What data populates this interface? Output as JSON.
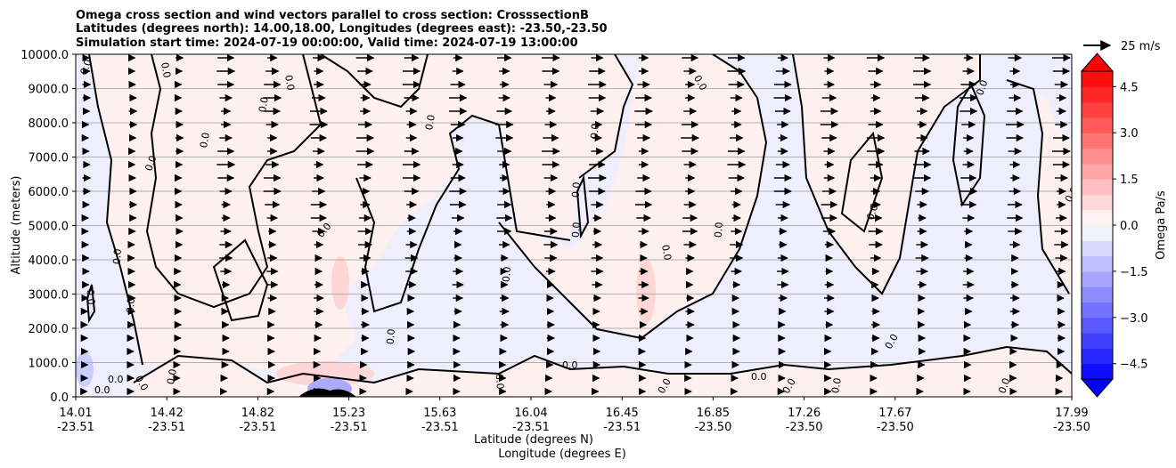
{
  "chart_data": {
    "type": "contour",
    "title_lines": [
      "Omega cross section and wind vectors parallel to cross section: CrosssectionB",
      "Latitudes (degrees north): 14.00,18.00, Longitudes (degrees east): -23.50,-23.50",
      "Simulation start time: 2024-07-19 00:00:00, Valid time: 2024-07-19 13:00:00"
    ],
    "xlabel_lines": [
      "Latitude (degrees N)",
      "Longitude (degrees E)"
    ],
    "ylabel": "Altitude (meters)",
    "x_ticks": [
      {
        "lat": "14.01",
        "lon": "-23.51"
      },
      {
        "lat": "14.42",
        "lon": "-23.51"
      },
      {
        "lat": "14.82",
        "lon": "-23.51"
      },
      {
        "lat": "15.23",
        "lon": "-23.51"
      },
      {
        "lat": "15.63",
        "lon": "-23.51"
      },
      {
        "lat": "16.04",
        "lon": "-23.51"
      },
      {
        "lat": "16.45",
        "lon": "-23.51"
      },
      {
        "lat": "16.85",
        "lon": "-23.50"
      },
      {
        "lat": "17.26",
        "lon": "-23.50"
      },
      {
        "lat": "17.67",
        "lon": "-23.50"
      },
      {
        "lat": "17.99",
        "lon": "-23.50"
      }
    ],
    "xlim": [
      14.01,
      17.99
    ],
    "ylim": [
      0,
      10000
    ],
    "y_ticks": [
      "0.0",
      "1000.0",
      "2000.0",
      "3000.0",
      "4000.0",
      "5000.0",
      "6000.0",
      "7000.0",
      "8000.0",
      "9000.0",
      "10000.0"
    ],
    "y_tick_values": [
      0,
      1000,
      2000,
      3000,
      4000,
      5000,
      6000,
      7000,
      8000,
      9000,
      10000
    ],
    "grid": "horizontal",
    "colorbar": {
      "label": "Omega Pa/s",
      "range": [
        -5.0,
        5.0
      ],
      "levels": 20,
      "extend": "both",
      "ticks": [
        "−4.5",
        "−3.0",
        "−1.5",
        "0.0",
        "1.5",
        "3.0",
        "4.5"
      ],
      "tick_values": [
        -4.5,
        -3.0,
        -1.5,
        0.0,
        1.5,
        3.0,
        4.5
      ],
      "colormap": "bwr"
    },
    "quiver_key": "25 m/s",
    "contour_label": "0.0",
    "contour_label_altitudes_approx": [
      9500,
      9400,
      8600,
      8000,
      7600,
      6500,
      5000,
      4000,
      3000,
      2500,
      1000,
      700,
      300
    ]
  }
}
